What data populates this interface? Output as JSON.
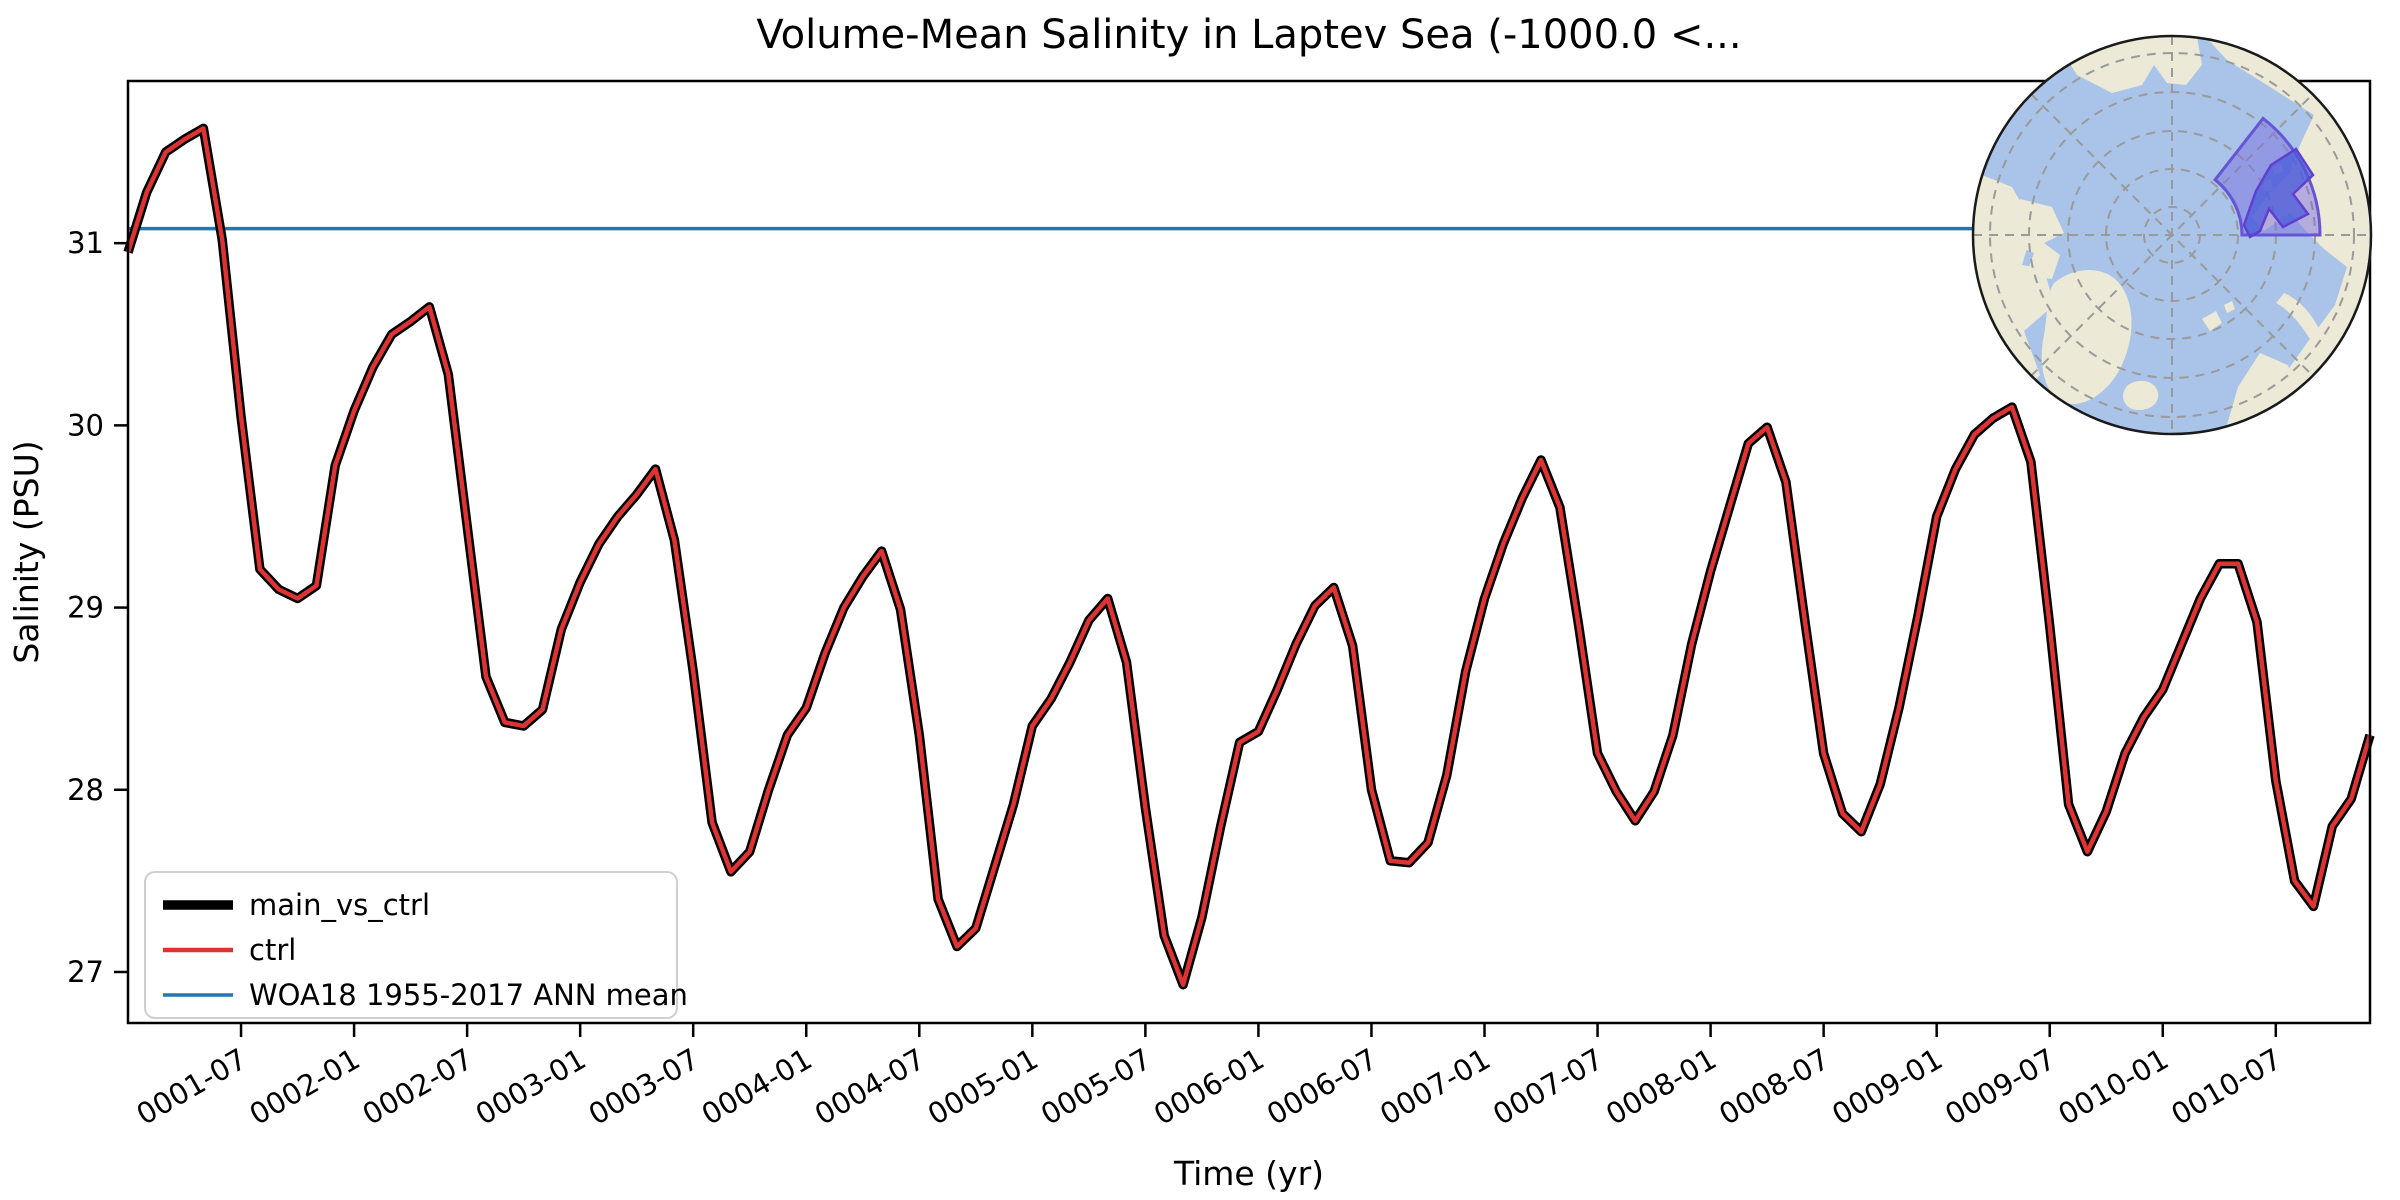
{
  "title": "Volume-Mean Salinity in Laptev Sea (-1000.0 <...",
  "xlabel": "Time (yr)",
  "ylabel": "Salinity (PSU)",
  "legend": {
    "position": "lower-left",
    "entries": [
      {
        "label": "main_vs_ctrl",
        "color": "#000000",
        "linewidth": 9.5
      },
      {
        "label": "ctrl",
        "color": "#dd3333",
        "linewidth": 4.5
      },
      {
        "label": "WOA18 1955-2017 ANN mean",
        "color": "#1f77b4",
        "linewidth": 3.5
      }
    ]
  },
  "chart_data": {
    "type": "line",
    "title": "Volume-Mean Salinity in Laptev Sea (-1000.0 <...",
    "xlabel": "Time (yr)",
    "ylabel": "Salinity (PSU)",
    "x_start_month": "0001-01",
    "x_end_month": "0010-12",
    "months_per_point": 1,
    "x_tick_labels": [
      "0001-07",
      "0002-01",
      "0002-07",
      "0003-01",
      "0003-07",
      "0004-01",
      "0004-07",
      "0005-01",
      "0005-07",
      "0006-01",
      "0006-07",
      "0007-01",
      "0007-07",
      "0008-01",
      "0008-07",
      "0009-01",
      "0009-07",
      "0010-01",
      "0010-07"
    ],
    "x_tick_month_indices": [
      6,
      12,
      18,
      24,
      30,
      36,
      42,
      48,
      54,
      60,
      66,
      72,
      78,
      84,
      90,
      96,
      102,
      108,
      114
    ],
    "y_ticks": [
      27,
      28,
      29,
      30,
      31
    ],
    "ylim": [
      26.72,
      31.89
    ],
    "grid": false,
    "x_tick_rotation_deg": 30,
    "note": "main_vs_ctrl and ctrl overlap exactly (identical values); red drawn over thick black",
    "series": [
      {
        "name": "main_vs_ctrl",
        "color": "#000000",
        "linewidth": 9.5,
        "values_ref": "shared_values"
      },
      {
        "name": "ctrl",
        "color": "#dd3333",
        "linewidth": 4.5,
        "values_ref": "shared_values"
      }
    ],
    "shared_values": [
      30.95,
      31.28,
      31.5,
      31.57,
      31.63,
      31.02,
      30.05,
      29.21,
      29.1,
      29.05,
      29.12,
      29.78,
      30.08,
      30.32,
      30.5,
      30.57,
      30.65,
      30.28,
      29.45,
      28.62,
      28.37,
      28.35,
      28.44,
      28.88,
      29.14,
      29.35,
      29.5,
      29.62,
      29.76,
      29.37,
      28.65,
      27.82,
      27.55,
      27.66,
      28.0,
      28.3,
      28.45,
      28.75,
      29.0,
      29.17,
      29.31,
      28.99,
      28.3,
      27.4,
      27.14,
      27.24,
      27.58,
      27.92,
      28.35,
      28.5,
      28.7,
      28.93,
      29.05,
      28.7,
      27.9,
      27.2,
      26.93,
      27.3,
      27.8,
      28.26,
      28.32,
      28.55,
      28.8,
      29.01,
      29.11,
      28.79,
      28.0,
      27.61,
      27.6,
      27.71,
      28.08,
      28.65,
      29.05,
      29.35,
      29.6,
      29.81,
      29.55,
      28.9,
      28.2,
      27.99,
      27.83,
      27.99,
      28.3,
      28.8,
      29.2,
      29.55,
      29.9,
      29.99,
      29.69,
      28.93,
      28.2,
      27.87,
      27.77,
      28.03,
      28.45,
      28.95,
      29.5,
      29.76,
      29.95,
      30.04,
      30.1,
      29.8,
      28.9,
      27.92,
      27.66,
      27.88,
      28.2,
      28.4,
      28.55,
      28.8,
      29.05,
      29.24,
      29.24,
      28.92,
      28.05,
      27.5,
      27.36,
      27.8,
      27.95,
      28.3
    ],
    "reference_line": {
      "name": "WOA18 1955-2017 ANN mean",
      "value": 31.08,
      "color": "#1f77b4",
      "linewidth": 3.5
    }
  },
  "inset_map": {
    "description": "North polar orthographic map inset, top-right, with Laptev Sea region highlighted",
    "highlight_region": "Laptev Sea",
    "colors": {
      "ocean": "#a9c4e8",
      "land": "#ece9d6",
      "graticule": "#9a9a9a",
      "wedge_fill": "#7e6fe0",
      "wedge_stroke": "#6656d6",
      "deep_sea_fill": "#4a5bd8",
      "rim": "#1a1a1a"
    }
  },
  "layout_colors": {
    "background": "#ffffff",
    "spine": "#000000",
    "legend_border": "#cfcfcf"
  }
}
